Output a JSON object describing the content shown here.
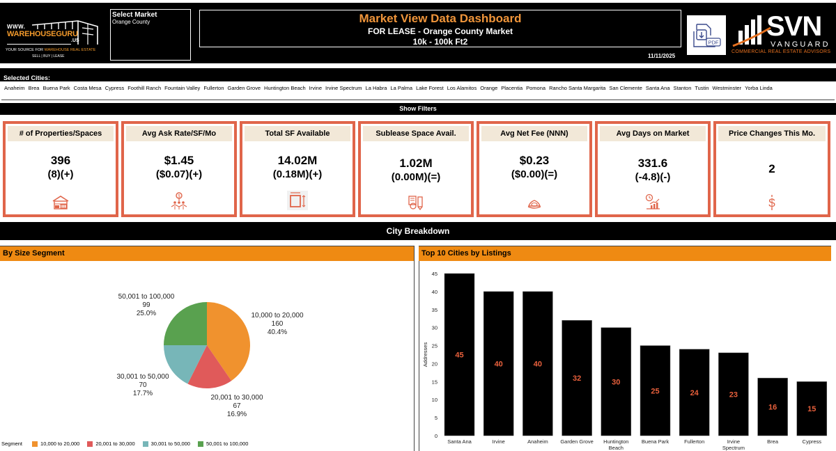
{
  "header": {
    "logo_left": {
      "www": "WWW.",
      "brand": "WAREHOUSEGURU",
      "tld": ".US",
      "tagline_prefix": "YOUR SOURCE FOR ",
      "tagline_highlight": "WAREHOUSE REAL ESTATE",
      "sub_tagline": "SELL | BUY | LEASE"
    },
    "market_select": {
      "label": "Select Market",
      "value": "Orange County"
    },
    "title": "Market View Data Dashboard",
    "subtitle": "FOR LEASE - Orange County Market",
    "size_range": "10k - 100k Ft2",
    "date": "11/11/2025",
    "pdf_button_label": "PDF",
    "logo_right": {
      "name": "SVN",
      "sub": "VANGUARD",
      "tagline": "COMMERCIAL REAL ESTATE ADVISORS"
    }
  },
  "selected_cities": {
    "label": "Selected Cities:",
    "cities": [
      "Anaheim",
      "Brea",
      "Buena Park",
      "Costa Mesa",
      "Cypress",
      "Foothill Ranch",
      "Fountain Valley",
      "Fullerton",
      "Garden Grove",
      "Huntington Beach",
      "Irvine",
      "Irvine Spectrum",
      "La Habra",
      "La Palma",
      "Lake Forest",
      "Los Alamitos",
      "Orange",
      "Placentia",
      "Pomona",
      "Rancho Santa Margarita",
      "San Clemente",
      "Santa Ana",
      "Stanton",
      "Tustin",
      "Westminster",
      "Yorba Linda"
    ]
  },
  "filters": {
    "label": "Show Filters"
  },
  "kpis": [
    {
      "title": "# of Properties/Spaces",
      "value": "396",
      "delta": "(8)(+)",
      "icon": "warehouse-icon"
    },
    {
      "title": "Avg Ask Rate/SF/Mo",
      "value": "$1.45",
      "delta": "($0.07)(+)",
      "icon": "people-network-dollar-icon"
    },
    {
      "title": "Total SF Available",
      "value": "14.02M",
      "delta": "(0.18M)(+)",
      "icon": "area-dimensions-icon"
    },
    {
      "title": "Sublease Space Avail.",
      "value": "1.02M",
      "delta": "(0.00M)(=)",
      "icon": "sublease-document-icon"
    },
    {
      "title": "Avg Net Fee (NNN)",
      "value": "$0.23",
      "delta": "($0.00)(=)",
      "icon": "money-hand-icon"
    },
    {
      "title": "Avg Days on Market",
      "value": "331.6",
      "delta": "(-4.8)(-)",
      "icon": "clock-chart-icon"
    },
    {
      "title": "Price Changes This Mo.",
      "value": "2",
      "delta": "",
      "icon": "dollar-icon"
    }
  ],
  "colors": {
    "accent_orange": "#ef8a12",
    "kpi_border": "#e0654a",
    "kpi_header_bg": "#f2e8d8",
    "title_orange": "#f0953a",
    "bar_label": "#e8603c"
  },
  "city_breakdown": {
    "label": "City Breakdown"
  },
  "panels": {
    "left_title": "By Size Segment",
    "right_title": "Top 10 Cities by Listings"
  },
  "chart_data": [
    {
      "type": "pie",
      "title": "By Size Segment",
      "legend_title": "Segment",
      "legend_position": "bottom-left",
      "slices": [
        {
          "label": "10,000 to 20,000",
          "value": 160,
          "percent": "40.4%",
          "color": "#f0922e"
        },
        {
          "label": "20,001 to 30,000",
          "value": 67,
          "percent": "16.9%",
          "color": "#e05a5a"
        },
        {
          "label": "30,001 to 50,000",
          "value": 70,
          "percent": "17.7%",
          "color": "#77b6b8"
        },
        {
          "label": "50,001 to 100,000",
          "value": 99,
          "percent": "25.0%",
          "color": "#59a14f"
        }
      ]
    },
    {
      "type": "bar",
      "title": "Top 10 Cities by Listings",
      "xlabel": "",
      "ylabel": "Addresses",
      "ylim": [
        0,
        45
      ],
      "yticks": [
        0,
        5,
        10,
        15,
        20,
        25,
        30,
        35,
        40,
        45
      ],
      "grid": false,
      "bar_color": "#000000",
      "categories": [
        "Santa Ana",
        "Irvine",
        "Anaheim",
        "Garden Grove",
        "Huntington Beach",
        "Buena Park",
        "Fullerton",
        "Irvine Spectrum",
        "Brea",
        "Cypress"
      ],
      "category_lines": [
        [
          "Santa Ana"
        ],
        [
          "Irvine"
        ],
        [
          "Anaheim"
        ],
        [
          "Garden Grove"
        ],
        [
          "Huntington",
          "Beach"
        ],
        [
          "Buena Park"
        ],
        [
          "Fullerton"
        ],
        [
          "Irvine",
          "Spectrum"
        ],
        [
          "Brea"
        ],
        [
          "Cypress"
        ]
      ],
      "values": [
        45,
        40,
        40,
        32,
        30,
        25,
        24,
        23,
        16,
        15
      ]
    }
  ]
}
